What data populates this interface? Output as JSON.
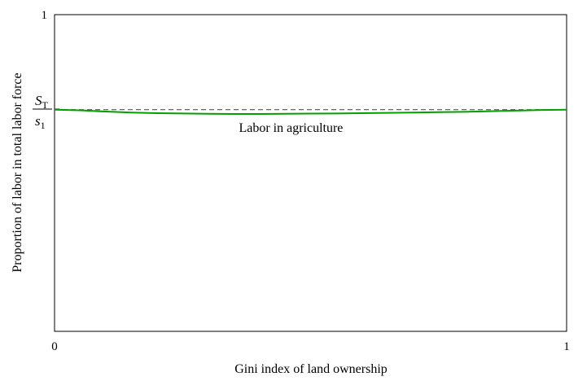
{
  "chart_data": {
    "type": "line",
    "title": "",
    "xlabel": "Gini index of land ownership",
    "ylabel": "Proportion of labor in total labor force",
    "xlim": [
      0,
      1
    ],
    "ylim": [
      0,
      1
    ],
    "x_ticks": [
      "0",
      "1"
    ],
    "y_ticks": [
      "1"
    ],
    "y_reference_label": {
      "numerator": "S",
      "numerator_sub": "T",
      "denominator": "s",
      "denominator_sub": "1"
    },
    "reference_line": {
      "y": 0.7,
      "style": "dashed",
      "color": "#555555"
    },
    "series": [
      {
        "name": "Labor in agriculture",
        "color": "#00a000",
        "x": [
          0,
          0.05,
          0.1,
          0.15,
          0.2,
          0.25,
          0.3,
          0.35,
          0.4,
          0.45,
          0.5,
          0.55,
          0.6,
          0.65,
          0.7,
          0.75,
          0.8,
          0.85,
          0.9,
          0.95,
          1
        ],
        "y": [
          0.7,
          0.698,
          0.694,
          0.691,
          0.689,
          0.688,
          0.687,
          0.6865,
          0.6865,
          0.687,
          0.6875,
          0.688,
          0.689,
          0.69,
          0.691,
          0.692,
          0.693,
          0.695,
          0.697,
          0.699,
          0.7
        ]
      }
    ],
    "annotations": [
      {
        "text": "Labor in agriculture",
        "x": 0.36,
        "y": 0.63
      }
    ],
    "grid": false,
    "legend": "none"
  }
}
